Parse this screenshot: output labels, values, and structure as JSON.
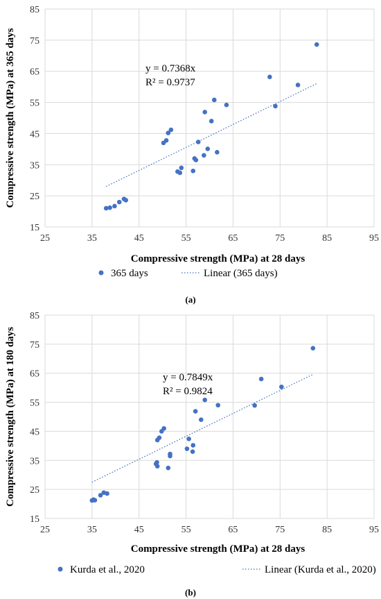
{
  "chart_data": [
    {
      "type": "scatter",
      "panel_label": "(a)",
      "xlabel": "Compressive strength (MPa) at 28 days",
      "ylabel": "Compressive strength (MPa) at 365 days",
      "xlim": [
        25,
        95
      ],
      "ylim": [
        15,
        85
      ],
      "xticks": [
        25,
        35,
        45,
        55,
        65,
        75,
        85,
        95
      ],
      "yticks": [
        15,
        25,
        35,
        45,
        55,
        65,
        75,
        85
      ],
      "grid": true,
      "legend_position": "bottom",
      "equation": "y = 0.7368x",
      "r_squared": "R² = 0.9737",
      "series": [
        {
          "name": "365 days",
          "color": "#4472C4",
          "points": [
            [
              38.0,
              21.0
            ],
            [
              38.8,
              21.2
            ],
            [
              39.8,
              21.7
            ],
            [
              40.8,
              23.0
            ],
            [
              41.8,
              24.0
            ],
            [
              42.2,
              23.6
            ],
            [
              50.2,
              42.0
            ],
            [
              50.8,
              42.8
            ],
            [
              51.2,
              45.2
            ],
            [
              51.8,
              46.2
            ],
            [
              53.2,
              32.8
            ],
            [
              53.7,
              32.4
            ],
            [
              54.0,
              34.0
            ],
            [
              56.5,
              33.0
            ],
            [
              56.8,
              37.0
            ],
            [
              57.1,
              36.5
            ],
            [
              57.6,
              42.3
            ],
            [
              58.8,
              38.0
            ],
            [
              59.0,
              51.9
            ],
            [
              59.6,
              40.1
            ],
            [
              60.4,
              49.0
            ],
            [
              61.0,
              55.8
            ],
            [
              61.6,
              39.0
            ],
            [
              63.6,
              54.2
            ],
            [
              72.8,
              63.2
            ],
            [
              74.0,
              53.8
            ],
            [
              78.8,
              60.6
            ],
            [
              82.8,
              73.6
            ]
          ]
        },
        {
          "name": "Linear (365 days)",
          "color": "#4472C4",
          "line": [
            [
              38.0,
              28.0
            ],
            [
              83.0,
              61.2
            ]
          ]
        }
      ]
    },
    {
      "type": "scatter",
      "panel_label": "(b)",
      "xlabel": "Compressive strength (MPa) at 28 days",
      "ylabel": "Compressive strength (MPa) at 180 days",
      "xlim": [
        25,
        95
      ],
      "ylim": [
        15,
        85
      ],
      "xticks": [
        25,
        35,
        45,
        55,
        65,
        75,
        85,
        95
      ],
      "yticks": [
        15,
        25,
        35,
        45,
        55,
        65,
        75,
        85
      ],
      "grid": true,
      "legend_position": "bottom",
      "equation": "y = 0.7849x",
      "r_squared": "R² = 0.9824",
      "series": [
        {
          "name": "Kurda et al., 2020",
          "color": "#4472C4",
          "points": [
            [
              35.0,
              21.2
            ],
            [
              35.3,
              21.5
            ],
            [
              35.6,
              21.3
            ],
            [
              36.8,
              23.0
            ],
            [
              37.5,
              23.9
            ],
            [
              38.2,
              23.6
            ],
            [
              48.6,
              33.8
            ],
            [
              48.8,
              34.3
            ],
            [
              48.9,
              33.0
            ],
            [
              48.9,
              42.0
            ],
            [
              49.3,
              42.8
            ],
            [
              49.8,
              45.0
            ],
            [
              50.3,
              46.0
            ],
            [
              51.2,
              32.4
            ],
            [
              51.6,
              36.5
            ],
            [
              51.6,
              37.2
            ],
            [
              55.2,
              39.0
            ],
            [
              55.6,
              42.4
            ],
            [
              56.4,
              38.0
            ],
            [
              56.5,
              40.2
            ],
            [
              57.0,
              51.9
            ],
            [
              58.2,
              49.0
            ],
            [
              59.0,
              55.8
            ],
            [
              61.8,
              54.0
            ],
            [
              69.6,
              53.9
            ],
            [
              71.0,
              63.0
            ],
            [
              75.3,
              60.3
            ],
            [
              82.0,
              73.6
            ]
          ]
        },
        {
          "name": "Linear (Kurda et al., 2020)",
          "color": "#4472C4",
          "line": [
            [
              35.0,
              27.5
            ],
            [
              82.0,
              64.6
            ]
          ]
        }
      ]
    }
  ]
}
